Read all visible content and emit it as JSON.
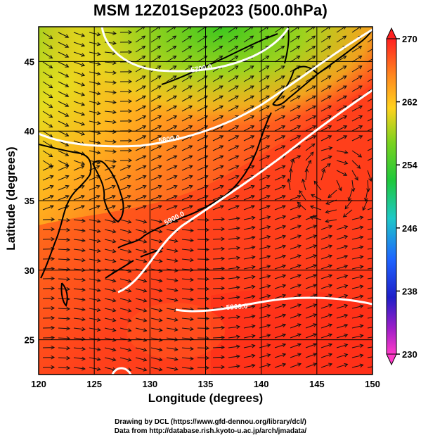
{
  "title": "MSM 12Z01Sep2023 (500.0hPa)",
  "x_axis": {
    "label": "Longitude (degrees)",
    "range": [
      120,
      150
    ],
    "ticks": [
      "120",
      "125",
      "130",
      "135",
      "140",
      "145",
      "150"
    ]
  },
  "y_axis": {
    "label": "Latitude  (degrees)",
    "range": [
      22.5,
      47.5
    ],
    "ticks": [
      "25",
      "30",
      "35",
      "40",
      "45"
    ]
  },
  "colorbar": {
    "range": [
      230,
      270
    ],
    "tick_labels": [
      "270",
      "262",
      "254",
      "246",
      "238",
      "230"
    ],
    "colors": [
      "#ff2020",
      "#ff8a1e",
      "#ffd21e",
      "#7ad21e",
      "#1ec83c",
      "#1ec8c8",
      "#1e64ff",
      "#1e1ec8",
      "#a01ec8",
      "#ff3cc8"
    ]
  },
  "contours": [
    {
      "label": "5700.0"
    },
    {
      "label": "5800.0"
    },
    {
      "label": "5900.0"
    },
    {
      "label": "5900.0"
    }
  ],
  "credits": [
    "Drawing by DCL (https://www.gfd-dennou.org/library/dcl/)",
    "Data from http://database.rish.kyoto-u.ac.jp/arch/jmadata/"
  ],
  "colors": {
    "warm_field": "#ff3a1a",
    "cold_field": "#3ac81e",
    "contour": "#ffffff",
    "coastline": "#000000"
  }
}
